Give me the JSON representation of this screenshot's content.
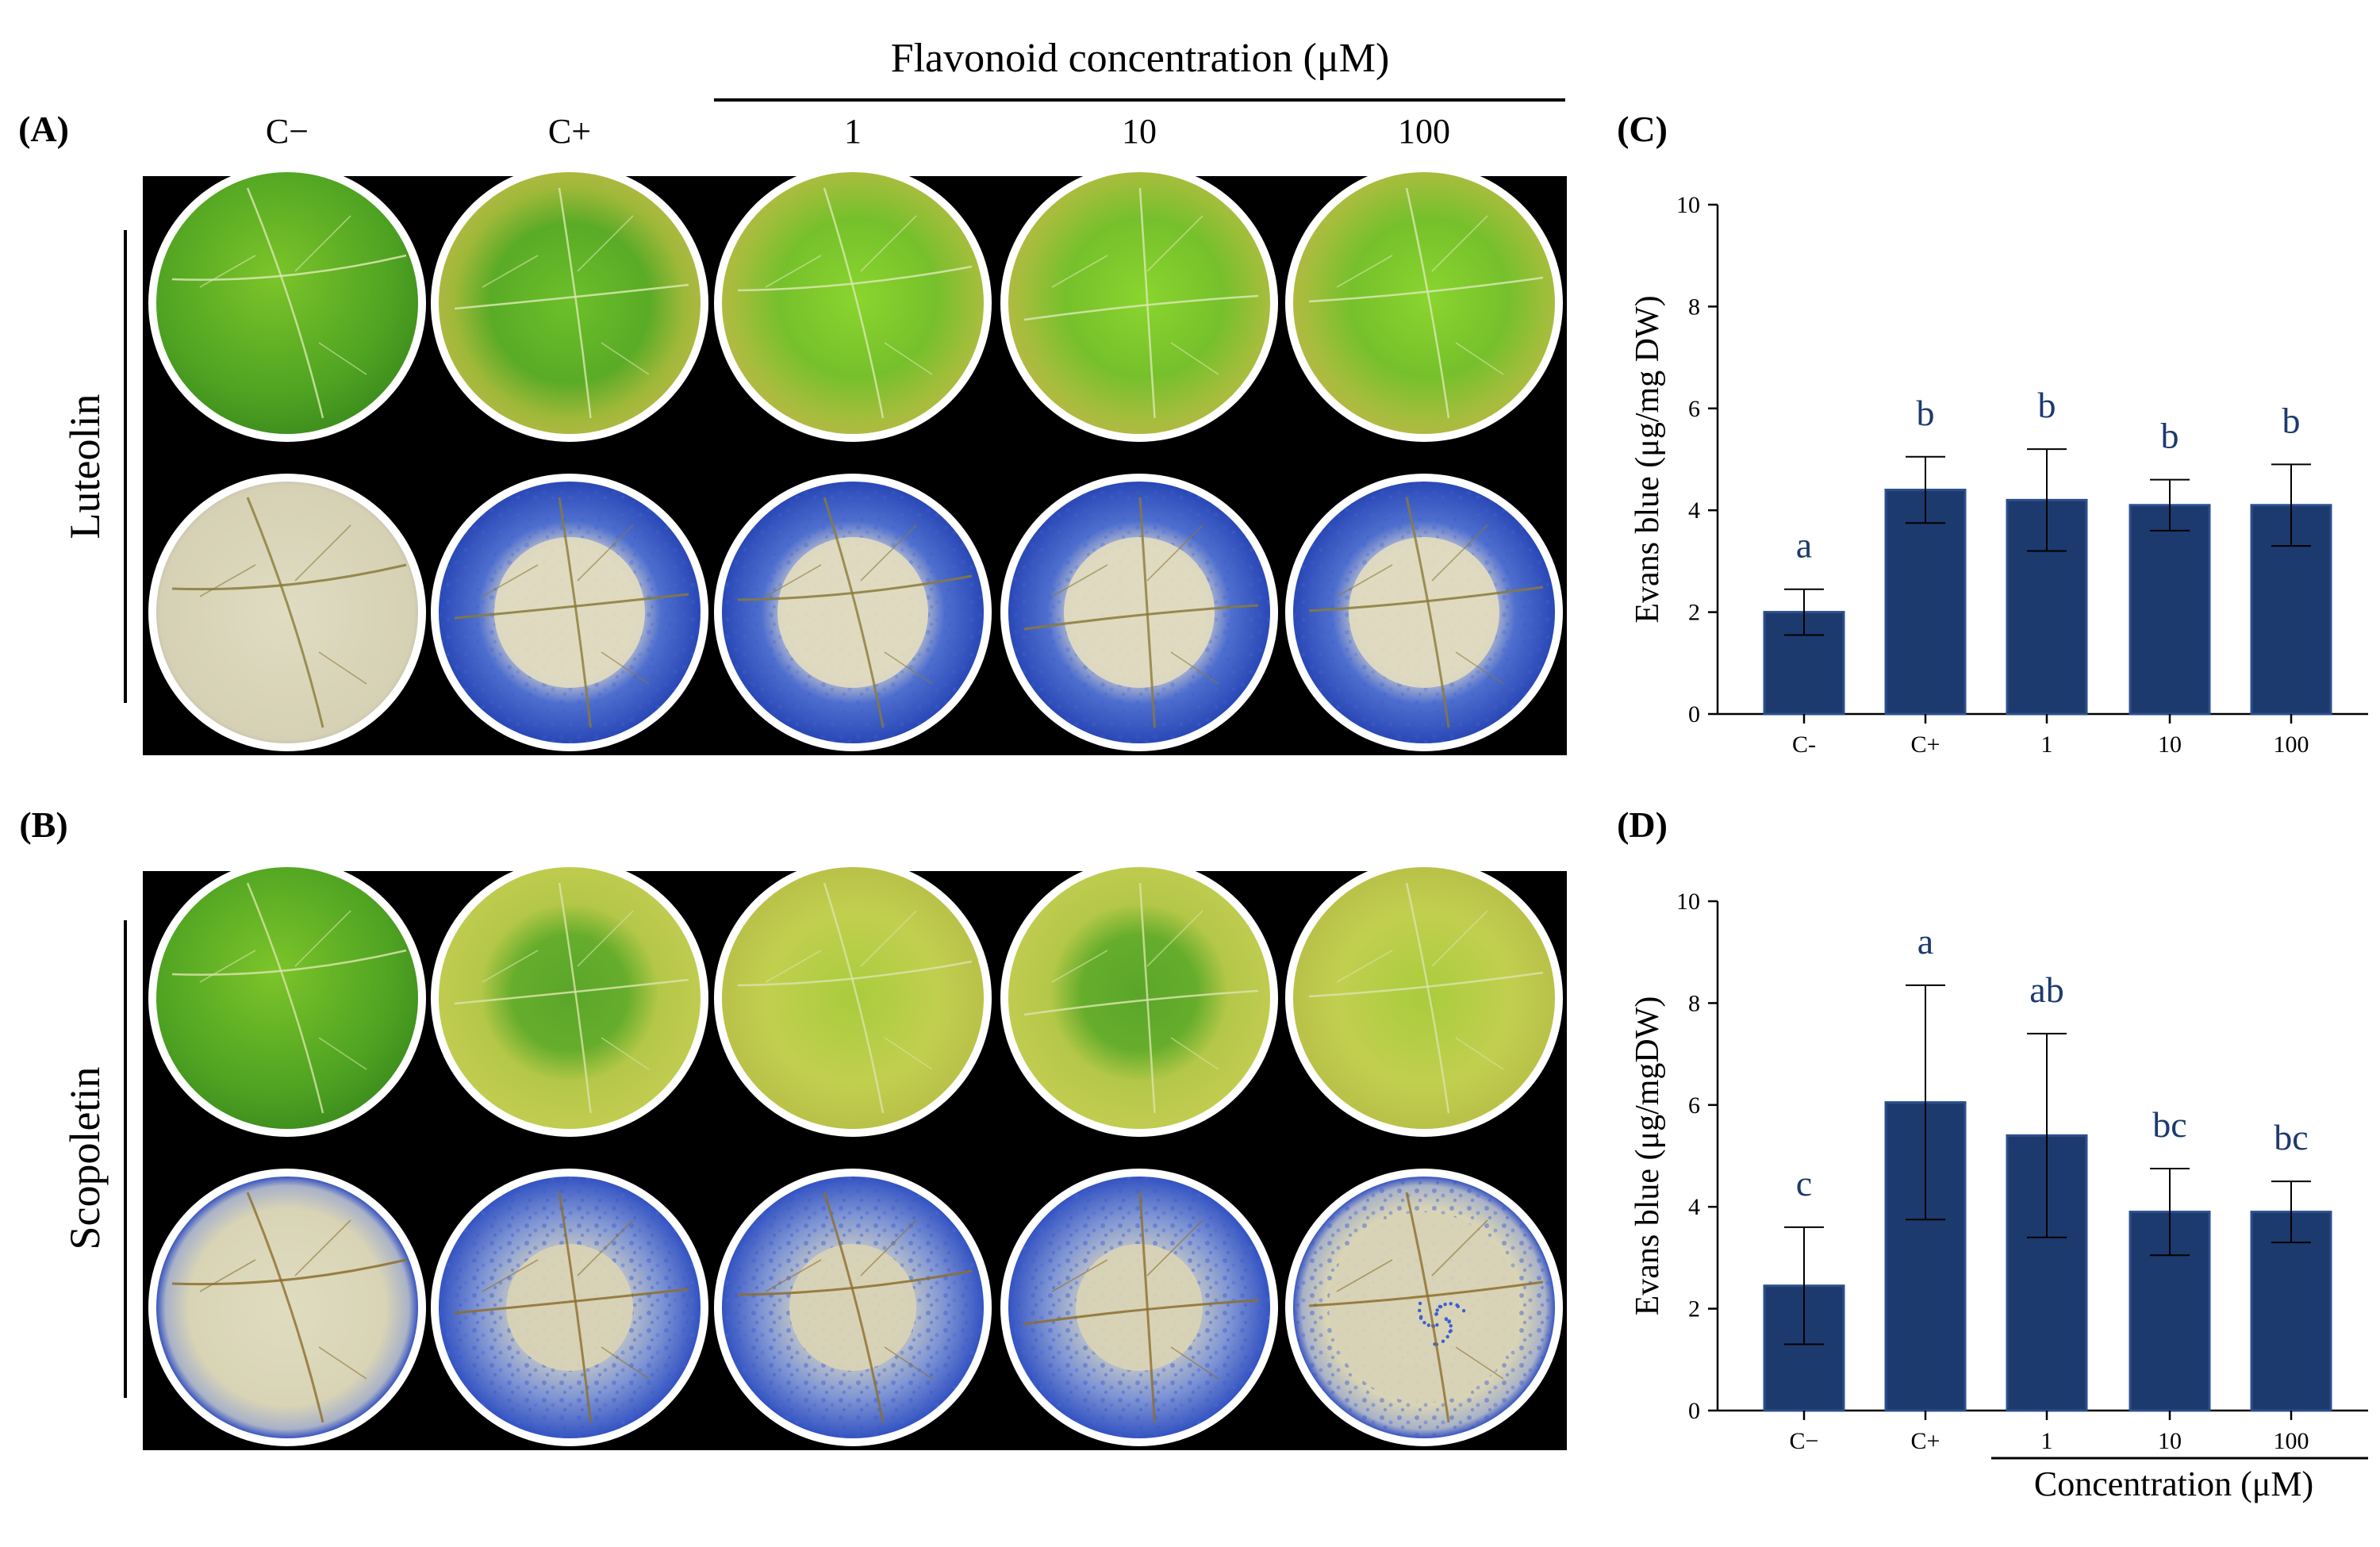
{
  "figure": {
    "panel_labels": {
      "A": "(A)",
      "B": "(B)",
      "C": "(C)",
      "D": "(D)"
    },
    "header": {
      "title": "Flavonoid concentration (μM)",
      "columns": [
        "C−",
        "C+",
        "1",
        "10",
        "100"
      ]
    },
    "rows": {
      "A": "Luteolin",
      "B": "Scopoletin"
    }
  },
  "photo": {
    "colors": {
      "background": "#000000",
      "rim": "#ffffff",
      "leaf_green_dark": "#3f9a1f",
      "leaf_green_light": "#86cc2c",
      "leaf_yellow": "#c4cf52",
      "stain_base": "#dcd8bc",
      "stain_blue": "#2e4fc2"
    }
  },
  "chart_data": [
    {
      "type": "bar",
      "panel": "C",
      "categories": [
        "C-",
        "C+",
        "1",
        "10",
        "100"
      ],
      "values": [
        2.0,
        4.4,
        4.2,
        4.1,
        4.1
      ],
      "errors": [
        0.45,
        0.65,
        1.0,
        0.5,
        0.8
      ],
      "significance": [
        "a",
        "b",
        "b",
        "b",
        "b"
      ],
      "xlabel": "",
      "ylabel": "Evans blue (μg/mg DW)",
      "ylim": [
        0,
        10
      ],
      "yticks": [
        "0",
        "2",
        "4",
        "6",
        "8",
        "10"
      ],
      "bar_color": "#1c3a6e",
      "letter_color": "#1c3a6e"
    },
    {
      "type": "bar",
      "panel": "D",
      "categories": [
        "C−",
        "C+",
        "1",
        "10",
        "100"
      ],
      "values": [
        2.45,
        6.05,
        5.4,
        3.9,
        3.9
      ],
      "errors": [
        1.15,
        2.3,
        2.0,
        0.85,
        0.6
      ],
      "significance": [
        "c",
        "a",
        "ab",
        "bc",
        "bc"
      ],
      "xlabel": "Concentration (μM)",
      "ylabel": "Evans blue (μg/mgDW)",
      "ylim": [
        0,
        10
      ],
      "yticks": [
        "0",
        "2",
        "4",
        "6",
        "8",
        "10"
      ],
      "bar_color": "#1c3a6e",
      "letter_color": "#1c3a6e"
    }
  ]
}
